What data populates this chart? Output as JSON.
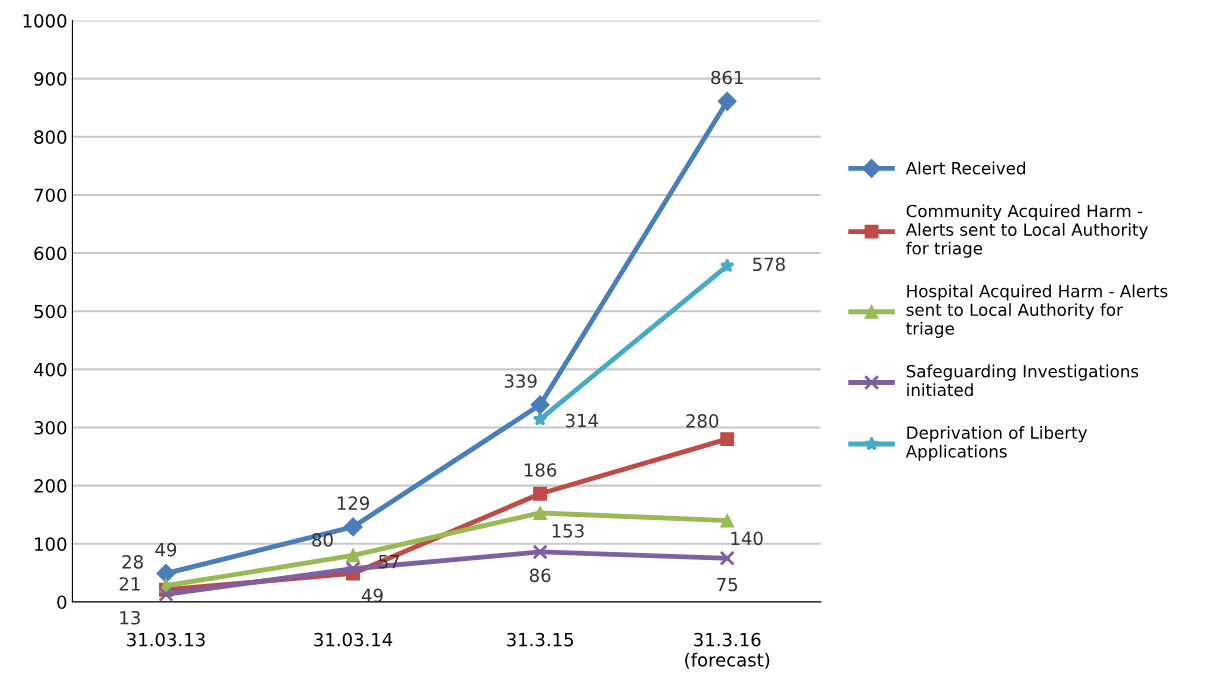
{
  "chart_data": {
    "type": "line",
    "categories": [
      "31.03.13",
      "31.03.14",
      "31.3.15",
      "31.3.16\n(forecast)"
    ],
    "series": [
      {
        "name": "Alert Received",
        "color": "#4a7ebb",
        "marker": "diamond",
        "values": [
          49,
          129,
          339,
          861
        ]
      },
      {
        "name": "Community Acquired Harm -\nAlerts sent to Local Authority\nfor triage",
        "color": "#be4b48",
        "marker": "square",
        "values": [
          21,
          49,
          186,
          280
        ]
      },
      {
        "name": "Hospital Acquired Harm - Alerts\nsent to Local Authority for\ntriage",
        "color": "#98b954",
        "marker": "triangle",
        "values": [
          28,
          80,
          153,
          140
        ]
      },
      {
        "name": "Safeguarding Investigations\ninitiated",
        "color": "#7d60a0",
        "marker": "cross",
        "values": [
          13,
          57,
          86,
          75
        ]
      },
      {
        "name": "Deprivation of Liberty\nApplications",
        "color": "#46aac5",
        "marker": "star",
        "values": [
          null,
          null,
          314,
          578
        ]
      }
    ],
    "ylim": [
      0,
      1000
    ],
    "yticks": [
      0,
      100,
      200,
      300,
      400,
      500,
      600,
      700,
      800,
      900,
      1000
    ],
    "grid": "y",
    "legend": "right",
    "data_labels": true
  }
}
